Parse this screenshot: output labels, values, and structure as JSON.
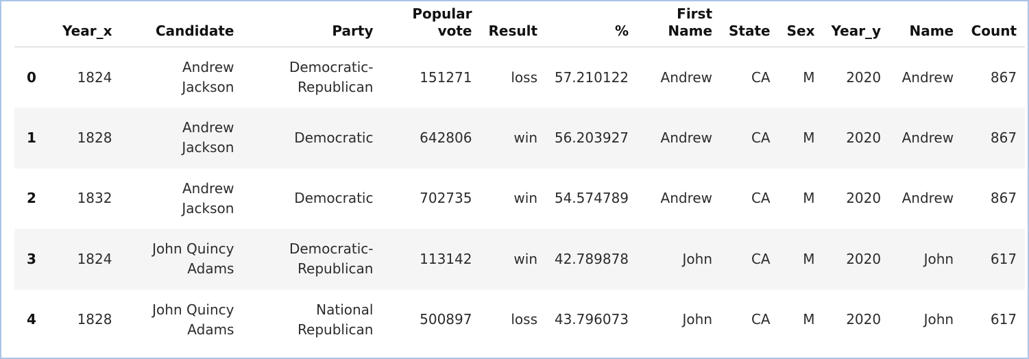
{
  "table": {
    "columns": [
      "",
      "Year_x",
      "Candidate",
      "Party",
      "Popular vote",
      "Result",
      "%",
      "First Name",
      "State",
      "Sex",
      "Year_y",
      "Name",
      "Count"
    ],
    "header": {
      "index": "",
      "year_x": "Year_x",
      "candidate": "Candidate",
      "party": "Party",
      "popular_vote_1": "Popular",
      "popular_vote_2": "vote",
      "result": "Result",
      "pct": "%",
      "first_name_1": "First",
      "first_name_2": "Name",
      "state": "State",
      "sex": "Sex",
      "year_y": "Year_y",
      "name": "Name",
      "count": "Count"
    },
    "rows": [
      {
        "index": "0",
        "year_x": "1824",
        "candidate_1": "Andrew",
        "candidate_2": "Jackson",
        "party_1": "Democratic-",
        "party_2": "Republican",
        "popular_vote": "151271",
        "result": "loss",
        "pct": "57.210122",
        "first_name": "Andrew",
        "state": "CA",
        "sex": "M",
        "year_y": "2020",
        "name": "Andrew",
        "count": "867"
      },
      {
        "index": "1",
        "year_x": "1828",
        "candidate_1": "Andrew",
        "candidate_2": "Jackson",
        "party_1": "Democratic",
        "party_2": "",
        "popular_vote": "642806",
        "result": "win",
        "pct": "56.203927",
        "first_name": "Andrew",
        "state": "CA",
        "sex": "M",
        "year_y": "2020",
        "name": "Andrew",
        "count": "867"
      },
      {
        "index": "2",
        "year_x": "1832",
        "candidate_1": "Andrew",
        "candidate_2": "Jackson",
        "party_1": "Democratic",
        "party_2": "",
        "popular_vote": "702735",
        "result": "win",
        "pct": "54.574789",
        "first_name": "Andrew",
        "state": "CA",
        "sex": "M",
        "year_y": "2020",
        "name": "Andrew",
        "count": "867"
      },
      {
        "index": "3",
        "year_x": "1824",
        "candidate_1": "John Quincy",
        "candidate_2": "Adams",
        "party_1": "Democratic-",
        "party_2": "Republican",
        "popular_vote": "113142",
        "result": "win",
        "pct": "42.789878",
        "first_name": "John",
        "state": "CA",
        "sex": "M",
        "year_y": "2020",
        "name": "John",
        "count": "617"
      },
      {
        "index": "4",
        "year_x": "1828",
        "candidate_1": "John Quincy",
        "candidate_2": "Adams",
        "party_1": "National",
        "party_2": "Republican",
        "popular_vote": "500897",
        "result": "loss",
        "pct": "43.796073",
        "first_name": "John",
        "state": "CA",
        "sex": "M",
        "year_y": "2020",
        "name": "John",
        "count": "617"
      }
    ]
  },
  "colors": {
    "border": "#a9c4e6",
    "row_alt": "#f5f5f5",
    "header_rule": "#cfcfcf"
  }
}
